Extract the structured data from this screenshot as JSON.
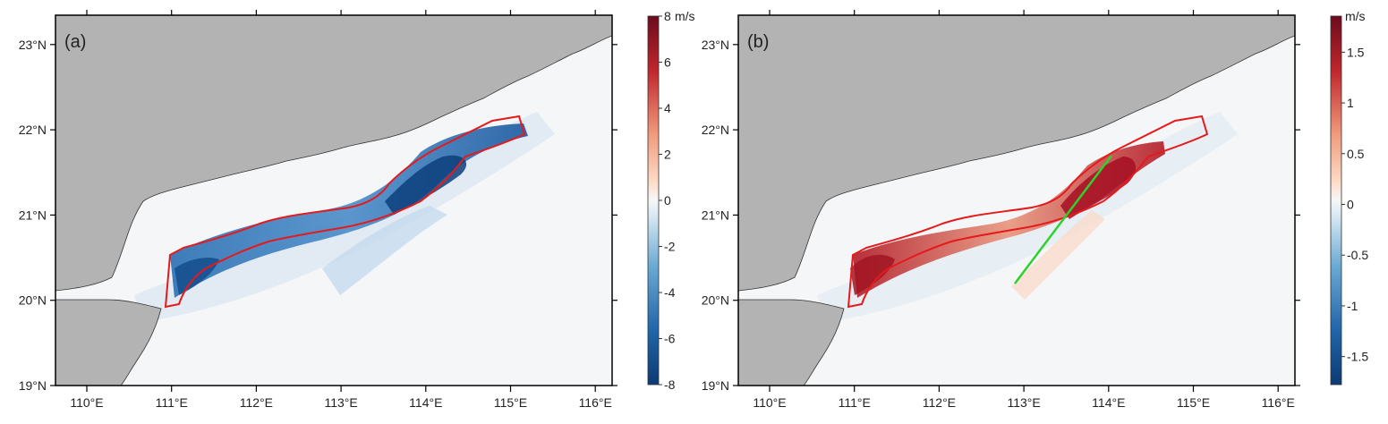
{
  "colors": {
    "land": "#b3b3b3",
    "coast": "#333333",
    "ocean": "#f4f6f8",
    "boundary": "#e41a1c",
    "transect": "#2ed12e",
    "blue_dark": "#0b3a73",
    "red_dark": "#7a0a1c"
  },
  "axes": {
    "x_ticks": [
      "110°E",
      "111°E",
      "112°E",
      "113°E",
      "114°E",
      "115°E",
      "116°E"
    ],
    "y_ticks": [
      "19°N",
      "20°N",
      "21°N",
      "22°N",
      "23°N"
    ]
  },
  "panels": [
    {
      "label": "(a)",
      "colorbar": {
        "unit": "m/s",
        "ticks": [
          "8",
          "6",
          "4",
          "2",
          "0",
          "-2",
          "-4",
          "-6",
          "-8"
        ]
      }
    },
    {
      "label": "(b)",
      "colorbar": {
        "unit": "m/s",
        "ticks": [
          "1.5",
          "1",
          "0.5",
          "0",
          "-0.5",
          "-1",
          "-1.5"
        ]
      }
    }
  ]
}
